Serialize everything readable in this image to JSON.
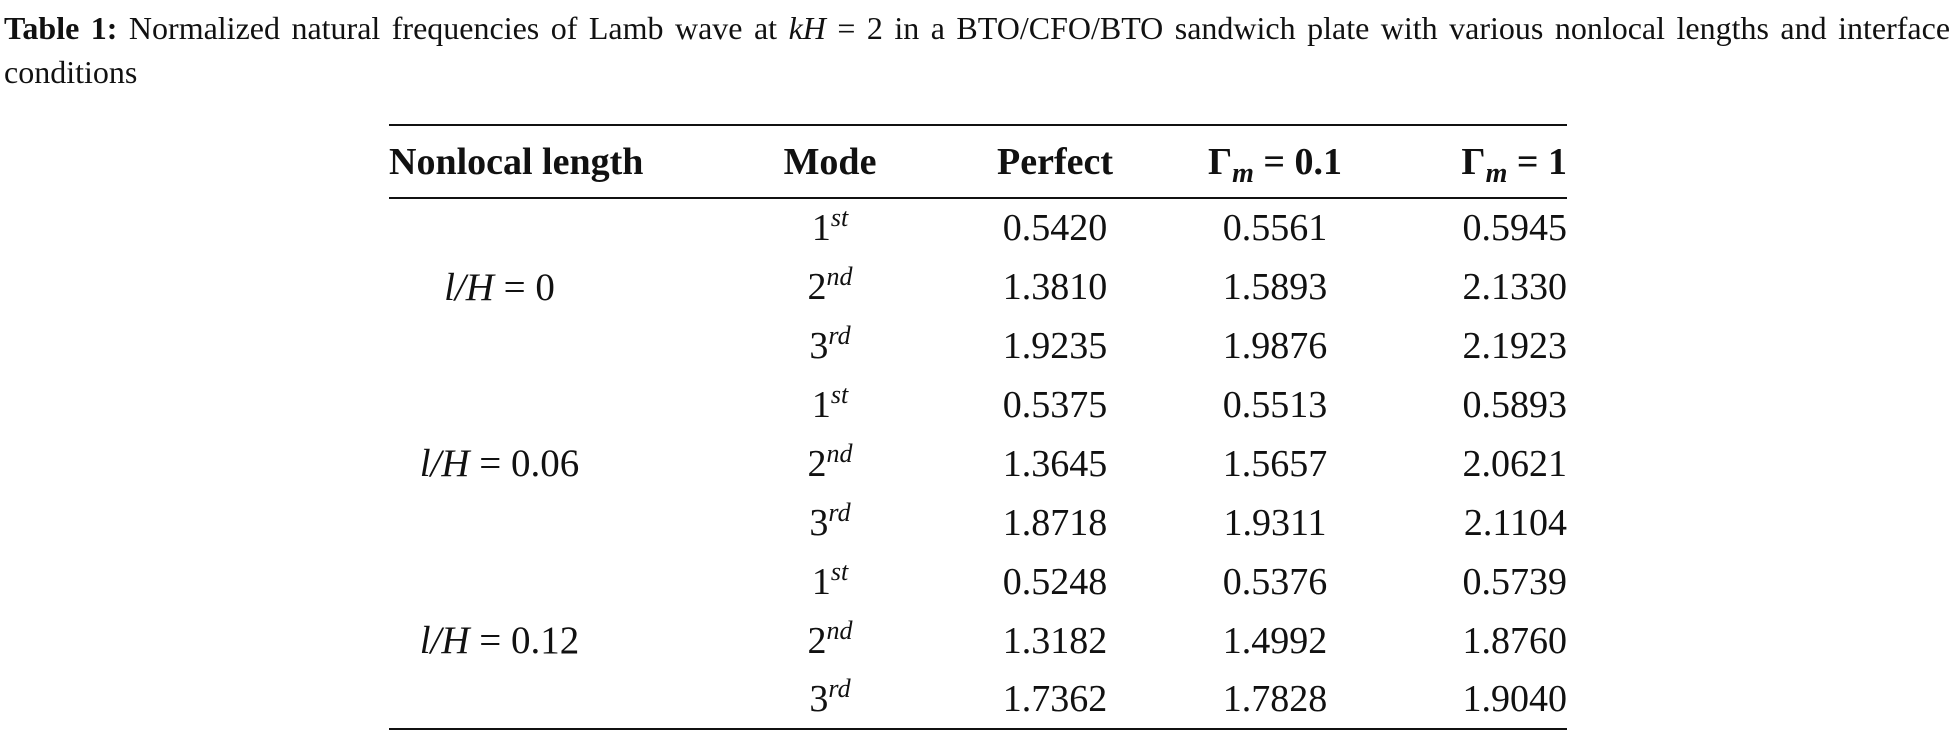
{
  "caption": {
    "label": "Table 1:",
    "parts": [
      "Normalized natural frequencies of Lamb wave at ",
      "kH",
      " = 2 in a BTO/CFO/BTO sandwich plate with various nonlocal lengths and interface conditions"
    ]
  },
  "table": {
    "headers": [
      {
        "text": "Nonlocal length"
      },
      {
        "text": "Mode"
      },
      {
        "text": "Perfect"
      },
      {
        "symbol": "Γ",
        "sub": "m",
        "rest": " = 0.1"
      },
      {
        "symbol": "Γ",
        "sub": "m",
        "rest": " = 1"
      }
    ],
    "groups": [
      {
        "var": "l/H",
        "rest": " = 0",
        "rows": [
          {
            "mode": [
              "1",
              "st"
            ],
            "values": [
              "0.5420",
              "0.5561",
              "0.5945"
            ]
          },
          {
            "mode": [
              "2",
              "nd"
            ],
            "values": [
              "1.3810",
              "1.5893",
              "2.1330"
            ]
          },
          {
            "mode": [
              "3",
              "rd"
            ],
            "values": [
              "1.9235",
              "1.9876",
              "2.1923"
            ]
          }
        ]
      },
      {
        "var": "l/H",
        "rest": " = 0.06",
        "rows": [
          {
            "mode": [
              "1",
              "st"
            ],
            "values": [
              "0.5375",
              "0.5513",
              "0.5893"
            ]
          },
          {
            "mode": [
              "2",
              "nd"
            ],
            "values": [
              "1.3645",
              "1.5657",
              "2.0621"
            ]
          },
          {
            "mode": [
              "3",
              "rd"
            ],
            "values": [
              "1.8718",
              "1.9311",
              "2.1104"
            ]
          }
        ]
      },
      {
        "var": "l/H",
        "rest": " = 0.12",
        "rows": [
          {
            "mode": [
              "1",
              "st"
            ],
            "values": [
              "0.5248",
              "0.5376",
              "0.5739"
            ]
          },
          {
            "mode": [
              "2",
              "nd"
            ],
            "values": [
              "1.3182",
              "1.4992",
              "1.8760"
            ]
          },
          {
            "mode": [
              "3",
              "rd"
            ],
            "values": [
              "1.7362",
              "1.7828",
              "1.9040"
            ]
          }
        ]
      }
    ]
  }
}
